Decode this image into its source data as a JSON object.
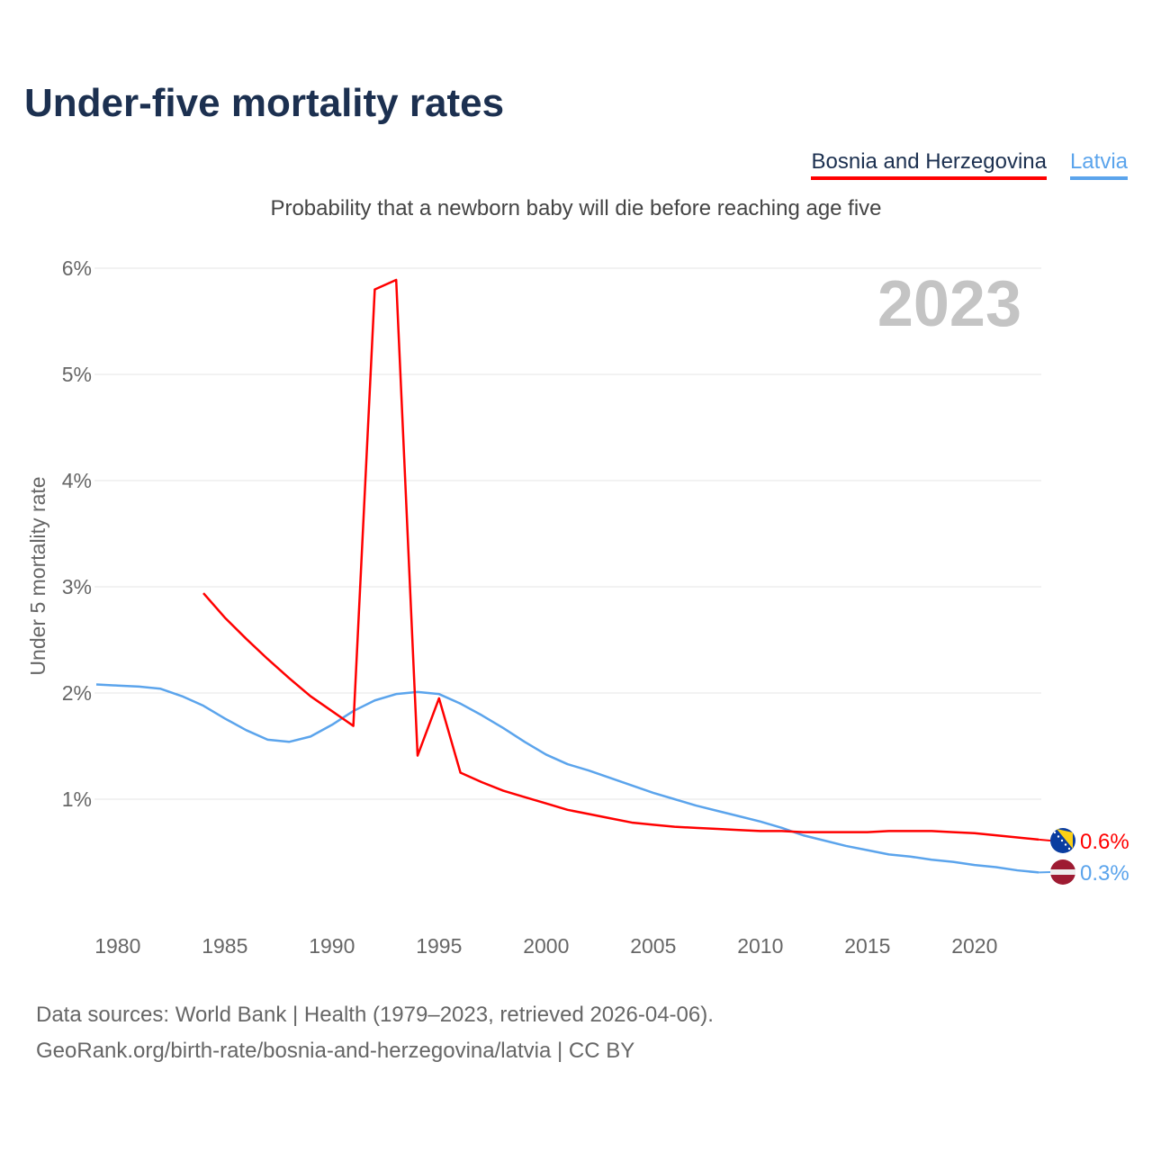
{
  "title": "Under-five mortality rates",
  "source_line1": "Data sources: World Bank | Health (1979–2023, retrieved 2026-04-06).",
  "source_line2": "GeoRank.org/birth-rate/bosnia-and-herzegovina/latvia | CC BY",
  "chart_data": {
    "type": "line",
    "title": "Under-five mortality rates",
    "subtitle": "Probability that a newborn baby will die before reaching age five",
    "ylabel": "Under 5 mortality rate",
    "xlabel": "",
    "year_label": "2023",
    "ylim": [
      0,
      6
    ],
    "xlim": [
      1979,
      2023
    ],
    "yticks": [
      "1%",
      "2%",
      "3%",
      "4%",
      "5%",
      "6%"
    ],
    "xticks": [
      "1980",
      "1985",
      "1990",
      "1995",
      "2000",
      "2005",
      "2010",
      "2015",
      "2020"
    ],
    "grid": true,
    "legend": "top-right",
    "series": [
      {
        "name": "Bosnia and Herzegovina",
        "color": "#ff0000",
        "end_label": "0.6%",
        "flag": "bosnia-flag-icon",
        "x": [
          1984,
          1985,
          1986,
          1987,
          1988,
          1989,
          1990,
          1991,
          1992,
          1993,
          1994,
          1995,
          1996,
          1997,
          1998,
          1999,
          2000,
          2001,
          2002,
          2003,
          2004,
          2005,
          2006,
          2007,
          2008,
          2009,
          2010,
          2011,
          2012,
          2013,
          2014,
          2015,
          2016,
          2017,
          2018,
          2019,
          2020,
          2021,
          2022,
          2023
        ],
        "values": [
          2.94,
          2.71,
          2.51,
          2.32,
          2.14,
          1.97,
          1.83,
          1.69,
          5.8,
          5.89,
          1.41,
          1.95,
          1.25,
          1.16,
          1.08,
          1.02,
          0.96,
          0.9,
          0.86,
          0.82,
          0.78,
          0.76,
          0.74,
          0.73,
          0.72,
          0.71,
          0.7,
          0.7,
          0.69,
          0.69,
          0.69,
          0.69,
          0.7,
          0.7,
          0.7,
          0.69,
          0.68,
          0.66,
          0.64,
          0.62
        ]
      },
      {
        "name": "Latvia",
        "color": "#5ba4ec",
        "end_label": "0.3%",
        "flag": "latvia-flag-icon",
        "x": [
          1979,
          1980,
          1981,
          1982,
          1983,
          1984,
          1985,
          1986,
          1987,
          1988,
          1989,
          1990,
          1991,
          1992,
          1993,
          1994,
          1995,
          1996,
          1997,
          1998,
          1999,
          2000,
          2001,
          2002,
          2003,
          2004,
          2005,
          2006,
          2007,
          2008,
          2009,
          2010,
          2011,
          2012,
          2013,
          2014,
          2015,
          2016,
          2017,
          2018,
          2019,
          2020,
          2021,
          2022,
          2023
        ],
        "values": [
          2.08,
          2.07,
          2.06,
          2.04,
          1.97,
          1.88,
          1.76,
          1.65,
          1.56,
          1.54,
          1.59,
          1.7,
          1.83,
          1.93,
          1.99,
          2.01,
          1.99,
          1.9,
          1.79,
          1.67,
          1.54,
          1.42,
          1.33,
          1.27,
          1.2,
          1.13,
          1.06,
          1.0,
          0.94,
          0.89,
          0.84,
          0.79,
          0.73,
          0.66,
          0.61,
          0.56,
          0.52,
          0.48,
          0.46,
          0.43,
          0.41,
          0.38,
          0.36,
          0.33,
          0.31
        ]
      }
    ]
  }
}
